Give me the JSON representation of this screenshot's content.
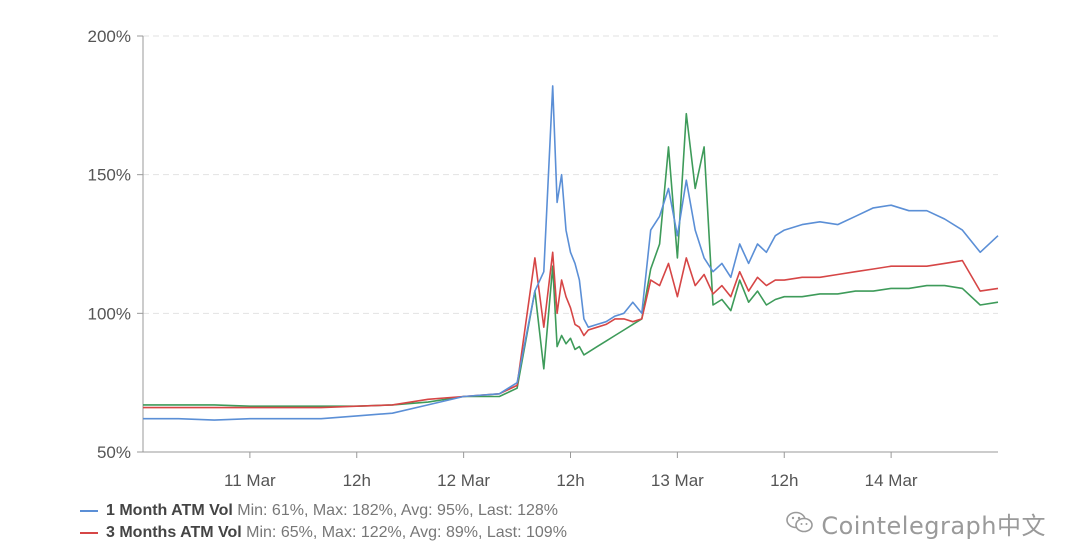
{
  "chart_data": {
    "type": "line",
    "title": "",
    "xlabel": "",
    "ylabel": "",
    "ylim": [
      50,
      200
    ],
    "y_ticks": [
      "200%",
      "150%",
      "100%",
      "50%"
    ],
    "x_ticks": [
      "11 Mar",
      "12h",
      "12 Mar",
      "12h",
      "13 Mar",
      "12h",
      "14 Mar"
    ],
    "grid": true,
    "legend_position": "bottom-left",
    "series": [
      {
        "name": "1 Month ATM Vol",
        "stats": "Min: 61%, Max: 182%, Avg: 95%, Last: 128%",
        "color": "#5b8fd6",
        "x": [
          0,
          4,
          8,
          12,
          16,
          20,
          24,
          28,
          32,
          36,
          40,
          42,
          44,
          45,
          46,
          46.5,
          47,
          47.5,
          48,
          48.5,
          49,
          49.5,
          50,
          51,
          52,
          53,
          54,
          55,
          56,
          57,
          58,
          59,
          60,
          61,
          62,
          63,
          64,
          65,
          66,
          67,
          68,
          69,
          70,
          71,
          72,
          74,
          76,
          78,
          80,
          82,
          84,
          86,
          88,
          90,
          92,
          94,
          96
        ],
        "values": [
          62,
          62,
          61.5,
          62,
          62,
          62,
          63,
          64,
          67,
          70,
          71,
          75,
          108,
          115,
          182,
          140,
          150,
          130,
          122,
          118,
          112,
          98,
          95,
          96,
          97,
          99,
          100,
          104,
          100,
          130,
          135,
          145,
          128,
          148,
          130,
          120,
          115,
          118,
          113,
          125,
          118,
          125,
          122,
          128,
          130,
          132,
          133,
          132,
          135,
          138,
          139,
          137,
          137,
          134,
          130,
          122,
          128
        ],
        "last": 128
      },
      {
        "name": "3 Months ATM Vol",
        "stats": "Min: 65%, Max: 122%, Avg: 89%, Last: 109%",
        "color": "#d64646",
        "x": [
          0,
          4,
          8,
          12,
          16,
          20,
          24,
          28,
          32,
          36,
          40,
          42,
          44,
          45,
          46,
          46.5,
          47,
          47.5,
          48,
          48.5,
          49,
          49.5,
          50,
          51,
          52,
          53,
          54,
          55,
          56,
          57,
          58,
          59,
          60,
          61,
          62,
          63,
          64,
          65,
          66,
          67,
          68,
          69,
          70,
          71,
          72,
          74,
          76,
          78,
          80,
          82,
          84,
          86,
          88,
          90,
          92,
          94,
          96
        ],
        "values": [
          66,
          66,
          66,
          66,
          66,
          66,
          66.5,
          67,
          69,
          70,
          71,
          74,
          120,
          95,
          122,
          100,
          112,
          106,
          102,
          96,
          95,
          92,
          94,
          95,
          96,
          98,
          98,
          97,
          98,
          112,
          110,
          118,
          106,
          120,
          110,
          114,
          107,
          110,
          106,
          115,
          108,
          113,
          110,
          112,
          112,
          113,
          113,
          114,
          115,
          116,
          117,
          117,
          117,
          118,
          119,
          108,
          109
        ],
        "last": 109
      },
      {
        "name": "",
        "color": "#3e9b5a",
        "x": [
          0,
          4,
          8,
          12,
          16,
          20,
          24,
          28,
          32,
          36,
          40,
          42,
          44,
          45,
          46,
          46.5,
          47,
          47.5,
          48,
          48.5,
          49,
          49.5,
          50,
          51,
          52,
          53,
          54,
          55,
          56,
          57,
          58,
          59,
          60,
          61,
          62,
          63,
          64,
          65,
          66,
          67,
          68,
          69,
          70,
          71,
          72,
          74,
          76,
          78,
          80,
          82,
          84,
          86,
          88,
          90,
          92,
          94,
          96
        ],
        "values": [
          67,
          67,
          67,
          66.5,
          66.5,
          66.5,
          66.5,
          67,
          68,
          70,
          70,
          73,
          108,
          80,
          117,
          88,
          92,
          89,
          91,
          87,
          88,
          85,
          86,
          88,
          90,
          92,
          94,
          96,
          98,
          116,
          125,
          160,
          120,
          172,
          145,
          160,
          103,
          105,
          101,
          112,
          104,
          108,
          103,
          105,
          106,
          106,
          107,
          107,
          108,
          108,
          109,
          109,
          110,
          110,
          109,
          103,
          104
        ],
        "last": 104
      }
    ]
  },
  "legend": [
    {
      "name": "1 Month ATM Vol",
      "stats": "Min: 61%, Max: 182%, Avg: 95%, Last: 128%",
      "color": "#5b8fd6"
    },
    {
      "name": "3 Months ATM Vol",
      "stats": "Min: 65%, Max: 122%, Avg: 89%, Last: 109%",
      "color": "#d64646"
    }
  ],
  "watermark": {
    "text": "Cointelegraph中文",
    "icon": "wechat-icon"
  }
}
